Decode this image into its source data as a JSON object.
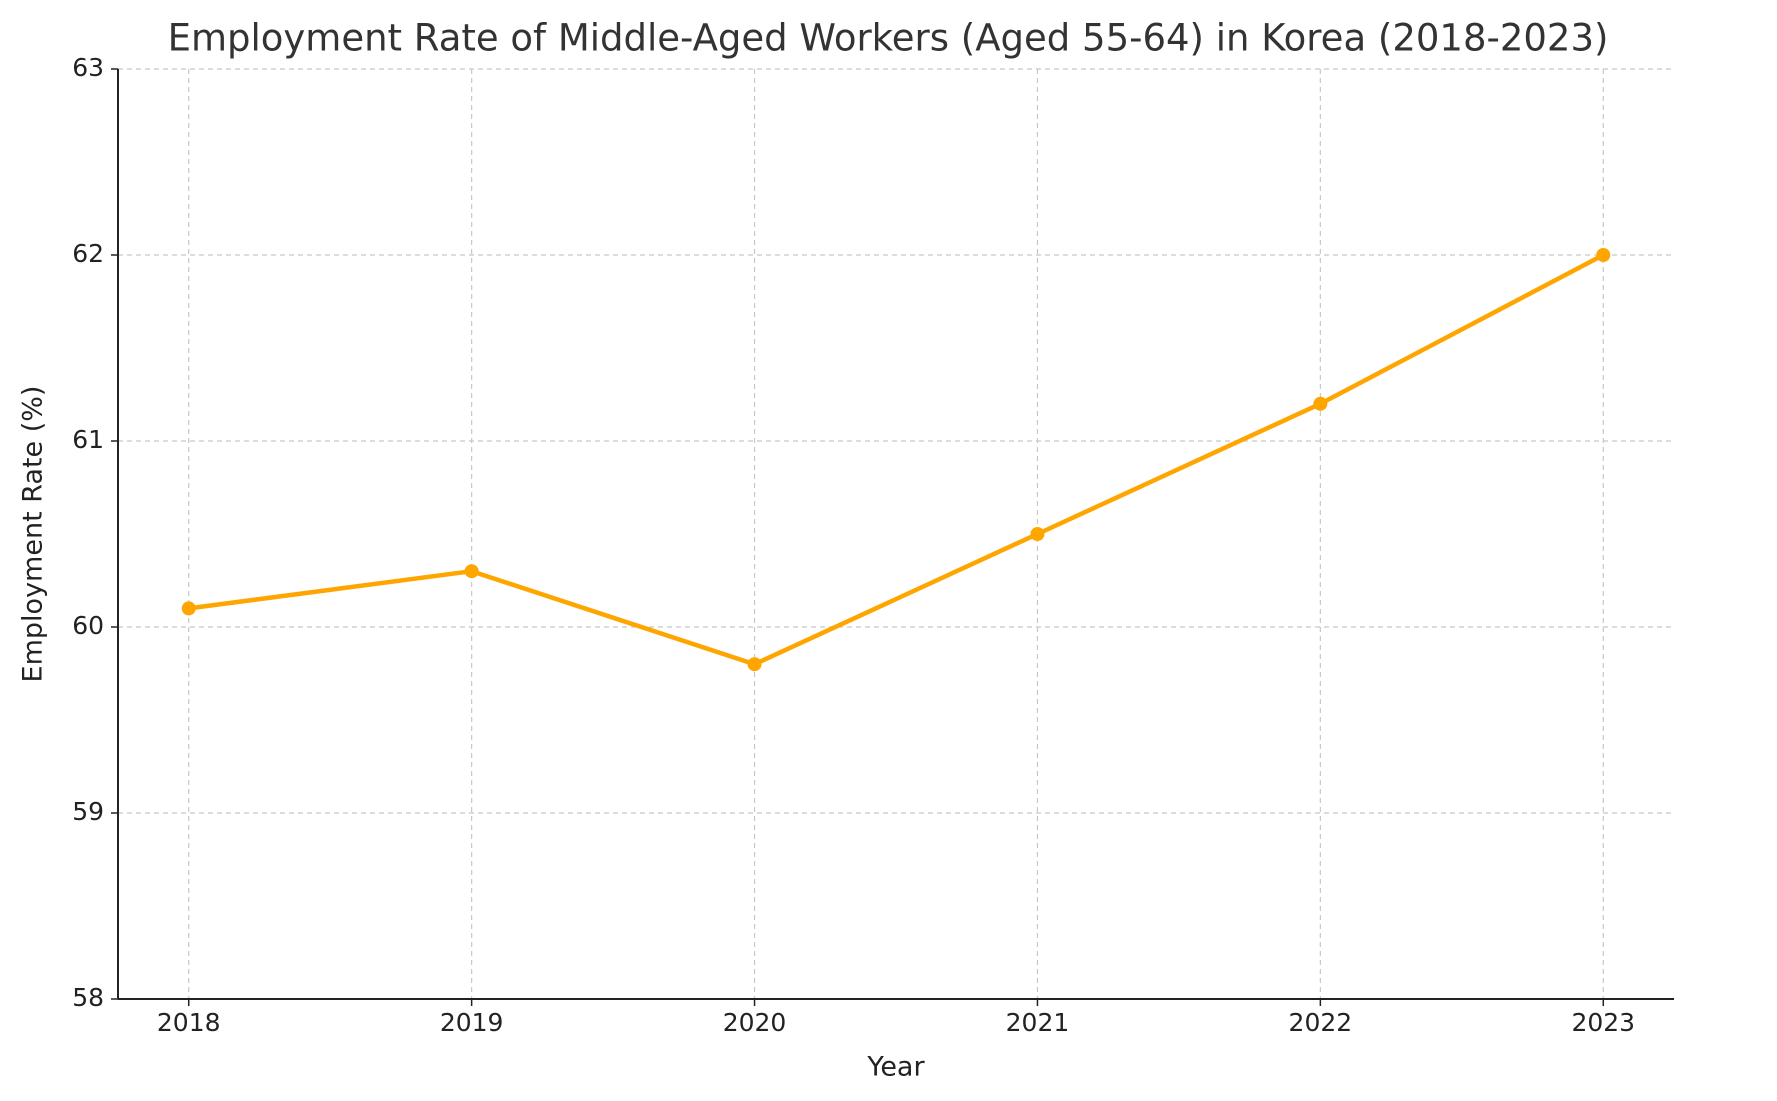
{
  "chart_data": {
    "type": "line",
    "title": "Employment Rate of Middle-Aged Workers (Aged 55-64) in Korea (2018-2023)",
    "x_label": "Year",
    "y_label": "Employment Rate (%)",
    "x": [
      2018,
      2019,
      2020,
      2021,
      2022,
      2023
    ],
    "series": [
      {
        "name": "Employment Rate",
        "color": "#ffa500",
        "values": [
          60.1,
          60.3,
          59.8,
          60.5,
          61.2,
          62.0
        ]
      }
    ],
    "xlim": [
      2017.75,
      2023.25
    ],
    "xticks": [
      2018,
      2019,
      2020,
      2021,
      2022,
      2023
    ],
    "ylim": [
      58,
      63
    ],
    "yticks": [
      58,
      59,
      60,
      61,
      62,
      63
    ],
    "grid": true
  }
}
